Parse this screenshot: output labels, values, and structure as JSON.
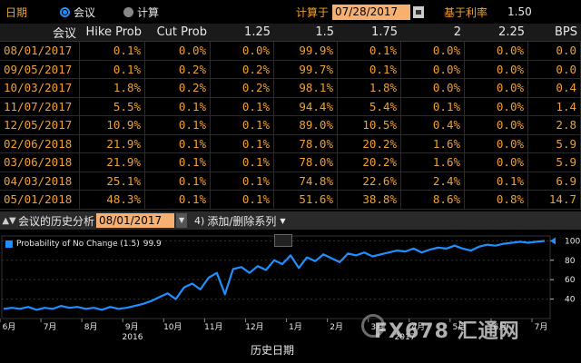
{
  "top": {
    "date_label": "日期",
    "radio_meeting": "会议",
    "radio_calc": "计算",
    "calc_on_label": "计算于",
    "calc_date": "07/28/2017",
    "base_rate_label": "基于利率",
    "base_rate_value": "1.50"
  },
  "table": {
    "headers": [
      "会议",
      "Hike Prob",
      "Cut Prob",
      "1.25",
      "1.5",
      "1.75",
      "2",
      "2.25",
      "BPS"
    ],
    "rows": [
      [
        "08/01/2017",
        "0.1%",
        "0.0%",
        "0.0%",
        "99.9%",
        "0.1%",
        "0.0%",
        "0.0%",
        "0.0"
      ],
      [
        "09/05/2017",
        "0.1%",
        "0.2%",
        "0.2%",
        "99.7%",
        "0.1%",
        "0.0%",
        "0.0%",
        "0.0"
      ],
      [
        "10/03/2017",
        "1.8%",
        "0.2%",
        "0.2%",
        "98.1%",
        "1.8%",
        "0.0%",
        "0.0%",
        "0.4"
      ],
      [
        "11/07/2017",
        "5.5%",
        "0.1%",
        "0.1%",
        "94.4%",
        "5.4%",
        "0.1%",
        "0.0%",
        "1.4"
      ],
      [
        "12/05/2017",
        "10.9%",
        "0.1%",
        "0.1%",
        "89.0%",
        "10.5%",
        "0.4%",
        "0.0%",
        "2.8"
      ],
      [
        "02/06/2018",
        "21.9%",
        "0.1%",
        "0.1%",
        "78.0%",
        "20.2%",
        "1.6%",
        "0.0%",
        "5.9"
      ],
      [
        "03/06/2018",
        "21.9%",
        "0.1%",
        "0.1%",
        "78.0%",
        "20.2%",
        "1.6%",
        "0.0%",
        "5.9"
      ],
      [
        "04/03/2018",
        "25.1%",
        "0.1%",
        "0.1%",
        "74.8%",
        "22.6%",
        "2.4%",
        "0.1%",
        "6.9"
      ],
      [
        "05/01/2018",
        "48.3%",
        "0.1%",
        "0.1%",
        "51.6%",
        "38.8%",
        "8.6%",
        "0.8%",
        "14.7"
      ]
    ]
  },
  "toolbar": {
    "meeting_history_label": "会议的历史分析",
    "meeting_date": "08/01/2017",
    "add_delete_series": "添加/删除系列"
  },
  "chart_data": {
    "type": "line",
    "legend": "Probability of No Change (1.5)",
    "legend_value": "99.9",
    "ylim": [
      20,
      105
    ],
    "yticks": [
      "100",
      "80",
      "60",
      "40"
    ],
    "xlabel": "历史日期",
    "x_month_labels": [
      "6月",
      "7月",
      "8月",
      "9月",
      "10月",
      "11月",
      "12月",
      "1月",
      "2月",
      "3月",
      "4月",
      "5月",
      "6月",
      "7月"
    ],
    "x_year_labels": [
      "2016",
      "2017"
    ],
    "series": [
      {
        "values": [
          30,
          31,
          30,
          32,
          29,
          31,
          30,
          33,
          31,
          32,
          30,
          31,
          29,
          32,
          30,
          31,
          33,
          35,
          38,
          42,
          46,
          40,
          52,
          56,
          50,
          62,
          67,
          45,
          71,
          73,
          67,
          74,
          70,
          80,
          76,
          85,
          72,
          83,
          79,
          86,
          82,
          78,
          87,
          85,
          88,
          84,
          86,
          88,
          90,
          89,
          92,
          88,
          91,
          93,
          92,
          95,
          92,
          90,
          94,
          96,
          95,
          97,
          98,
          99,
          98,
          99,
          99.9
        ]
      }
    ],
    "colors": {
      "line": "#1e8fff",
      "fill": "#1e8fff"
    }
  },
  "watermark": "FX678 汇通网"
}
